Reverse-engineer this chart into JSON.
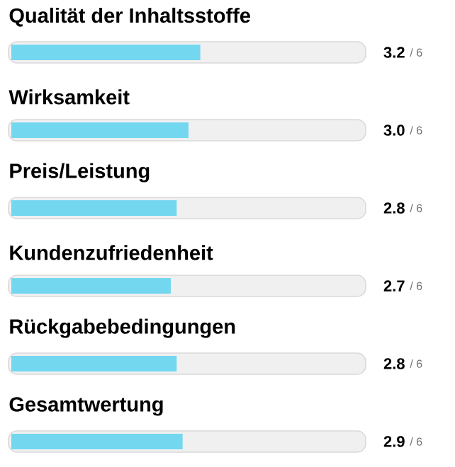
{
  "chart_data": {
    "type": "bar",
    "orientation": "horizontal",
    "categories": [
      "Qualität der Inhaltsstoffe",
      "Wirksamkeit",
      "Preis/Leistung",
      "Kundenzufriedenheit",
      "Rückgabebedingungen",
      "Gesamtwertung"
    ],
    "values": [
      3.2,
      3.0,
      2.8,
      2.7,
      2.8,
      2.9
    ],
    "value_labels": [
      "3.2",
      "3.0",
      "2.8",
      "2.7",
      "2.8",
      "2.9"
    ],
    "annotations": [
      "/ 6",
      "/ 6",
      "/ 6",
      "/ 6",
      "/ 6",
      "/ 6"
    ],
    "color": "#74d7f0",
    "xlim": [
      0,
      6
    ]
  }
}
